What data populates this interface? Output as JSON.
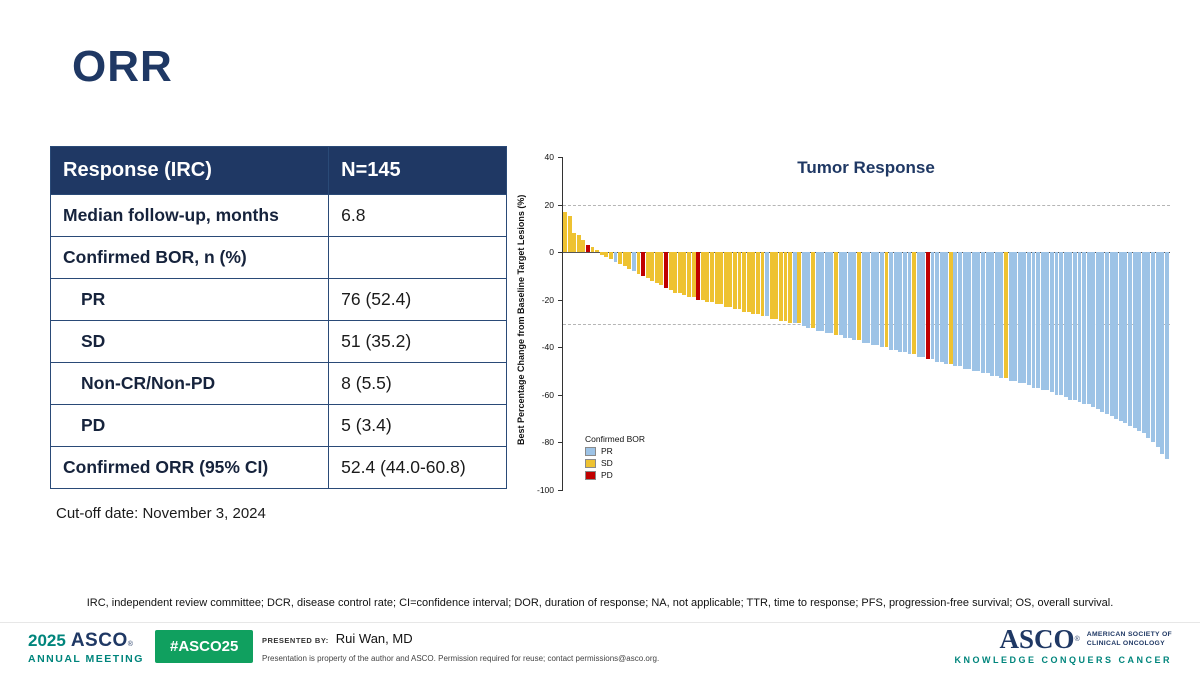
{
  "title": "ORR",
  "colors": {
    "navy": "#1F3864",
    "teal": "#00857C",
    "badge_green": "#10A05F"
  },
  "table": {
    "header": {
      "label": "Response (IRC)",
      "value": "N=145"
    },
    "rows": [
      {
        "label": "Median follow-up, months",
        "value": "6.8",
        "indent": false
      },
      {
        "label": "Confirmed BOR, n (%)",
        "value": "",
        "indent": false
      },
      {
        "label": "PR",
        "value": "76 (52.4)",
        "indent": true
      },
      {
        "label": "SD",
        "value": "51 (35.2)",
        "indent": true
      },
      {
        "label": "Non-CR/Non-PD",
        "value": "8 (5.5)",
        "indent": true
      },
      {
        "label": "PD",
        "value": "5 (3.4)",
        "indent": true
      },
      {
        "label": "Confirmed ORR (95% CI)",
        "value": "52.4 (44.0-60.8)",
        "indent": false
      }
    ],
    "cutoff_note": "Cut-off date: November 3, 2024"
  },
  "chart_data": {
    "type": "bar",
    "subtype": "waterfall",
    "title": "Tumor Response",
    "ylabel": "Best Percentage Change from Baseline Target Lesions (%)",
    "ylim": [
      -100,
      40
    ],
    "yticks": [
      40,
      20,
      0,
      -20,
      -40,
      -60,
      -80,
      -100
    ],
    "reference_lines": [
      20,
      -30
    ],
    "grid": "dashed-horizontal",
    "legend_position": "lower-left",
    "legend_title": "Confirmed BOR",
    "legend": [
      {
        "label": "PR",
        "color": "#9DC3E6"
      },
      {
        "label": "SD",
        "color": "#EEC231"
      },
      {
        "label": "PD",
        "color": "#C00000"
      }
    ],
    "colors": {
      "PR": "#9DC3E6",
      "SD": "#EEC231",
      "PD": "#C00000"
    },
    "values": [
      17,
      15,
      8,
      7,
      5,
      3,
      2,
      1,
      -1,
      -2,
      -3,
      -4,
      -5,
      -6,
      -7,
      -8,
      -9,
      -10,
      -11,
      -12,
      -13,
      -14,
      -15,
      -16,
      -17,
      -17,
      -18,
      -19,
      -19,
      -20,
      -20,
      -21,
      -21,
      -22,
      -22,
      -23,
      -23,
      -24,
      -24,
      -25,
      -25,
      -26,
      -26,
      -27,
      -27,
      -28,
      -28,
      -29,
      -29,
      -30,
      -30,
      -30,
      -31,
      -32,
      -32,
      -33,
      -33,
      -34,
      -34,
      -35,
      -35,
      -36,
      -36,
      -37,
      -37,
      -38,
      -38,
      -39,
      -39,
      -40,
      -40,
      -41,
      -41,
      -42,
      -42,
      -43,
      -43,
      -44,
      -44,
      -45,
      -45,
      -46,
      -46,
      -47,
      -47,
      -48,
      -48,
      -49,
      -49,
      -50,
      -50,
      -51,
      -51,
      -52,
      -52,
      -53,
      -53,
      -54,
      -54,
      -55,
      -55,
      -56,
      -57,
      -57,
      -58,
      -58,
      -59,
      -60,
      -60,
      -61,
      -62,
      -62,
      -63,
      -64,
      -64,
      -65,
      -66,
      -67,
      -68,
      -69,
      -70,
      -71,
      -72,
      -73,
      -74,
      -75,
      -76,
      -78,
      -80,
      -82,
      -85,
      -87
    ],
    "bor": [
      "SD",
      "SD",
      "SD",
      "SD",
      "SD",
      "PD",
      "SD",
      "SD",
      "SD",
      "SD",
      "SD",
      "PR",
      "SD",
      "SD",
      "SD",
      "PR",
      "SD",
      "PD",
      "SD",
      "SD",
      "SD",
      "SD",
      "PD",
      "SD",
      "SD",
      "SD",
      "SD",
      "SD",
      "SD",
      "PD",
      "SD",
      "SD",
      "SD",
      "SD",
      "SD",
      "SD",
      "SD",
      "SD",
      "SD",
      "SD",
      "SD",
      "SD",
      "SD",
      "SD",
      "PR",
      "SD",
      "SD",
      "SD",
      "SD",
      "SD",
      "PR",
      "SD",
      "PR",
      "PR",
      "SD",
      "PR",
      "PR",
      "PR",
      "PR",
      "SD",
      "PR",
      "PR",
      "PR",
      "PR",
      "SD",
      "PR",
      "PR",
      "PR",
      "PR",
      "PR",
      "SD",
      "PR",
      "PR",
      "PR",
      "PR",
      "PR",
      "SD",
      "PR",
      "PR",
      "PD",
      "PR",
      "PR",
      "PR",
      "PR",
      "SD",
      "PR",
      "PR",
      "PR",
      "PR",
      "PR",
      "PR",
      "PR",
      "PR",
      "PR",
      "PR",
      "PR",
      "SD",
      "PR",
      "PR",
      "PR",
      "PR",
      "PR",
      "PR",
      "PR",
      "PR",
      "PR",
      "PR",
      "PR",
      "PR",
      "PR",
      "PR",
      "PR",
      "PR",
      "PR",
      "PR",
      "PR",
      "PR",
      "PR",
      "PR",
      "PR",
      "PR",
      "PR",
      "PR",
      "PR",
      "PR",
      "PR",
      "PR",
      "PR",
      "PR",
      "PR",
      "PR",
      "PR"
    ]
  },
  "footnote": "IRC, independent review committee; DCR, disease control rate; CI=confidence interval; DOR, duration of response; NA, not applicable; TTR, time to response; PFS, progression-free survival; OS, overall survival.",
  "footer": {
    "meeting_logo": {
      "year": "2025",
      "org": "ASCO",
      "reg": "®",
      "line2": "ANNUAL MEETING"
    },
    "hashtag": "#ASCO25",
    "presented_by_label": "PRESENTED BY:",
    "presenter": "Rui Wan, MD",
    "disclaimer": "Presentation is property of the author and ASCO. Permission required for reuse; contact permissions@asco.org.",
    "asco_logo": {
      "name": "ASCO",
      "reg": "®",
      "org_line1": "AMERICAN SOCIETY OF",
      "org_line2": "CLINICAL ONCOLOGY",
      "tagline": "KNOWLEDGE CONQUERS CANCER"
    }
  }
}
